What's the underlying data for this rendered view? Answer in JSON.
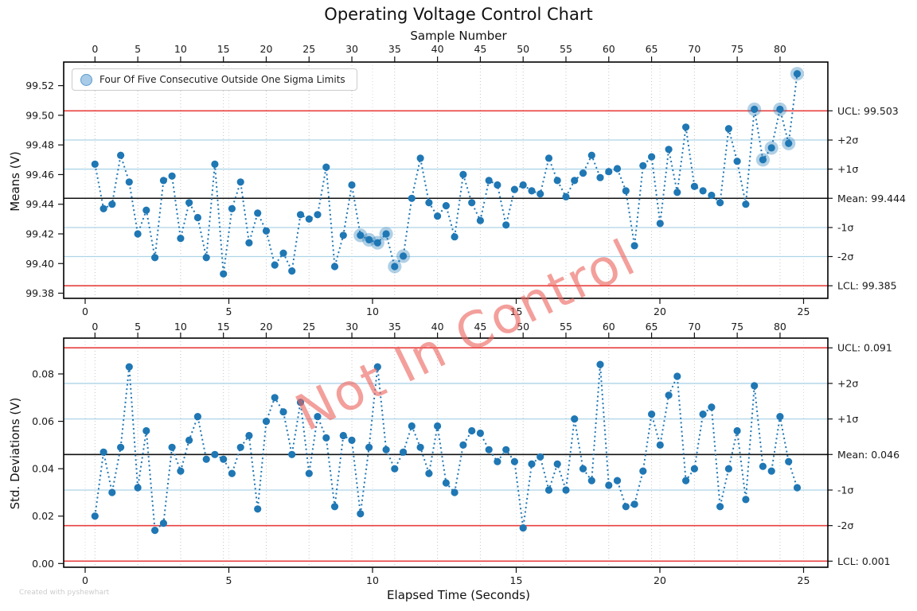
{
  "title": "Operating Voltage Control Chart",
  "top_axis_label": "Sample Number",
  "xlabel": "Elapsed Time (Seconds)",
  "footer": "Created with pyshewhart",
  "legend": {
    "label": "Four Of Five Consecutive Outside One Sigma Limits"
  },
  "watermark": {
    "text": "Not In Control",
    "color": "rgba(235,100,94,0.62)"
  },
  "colors": {
    "point": "#1f77b4",
    "halo": "rgba(31,119,180,0.35)",
    "limit_red": "#e84040",
    "sigma_blue": "#aed4e8",
    "mean_black": "#111111",
    "grid_dotted": "#c4c4c4"
  },
  "chart_data": [
    {
      "type": "line",
      "name": "means-chart",
      "ylabel": "Means (V)",
      "sample_ticks": [
        0,
        5,
        10,
        15,
        20,
        25,
        30,
        35,
        40,
        45,
        50,
        55,
        60,
        65,
        70,
        75,
        80
      ],
      "time_ticks": [
        0,
        5,
        10,
        15,
        20,
        25
      ],
      "seconds_per_sample": 0.3,
      "yticks": [
        "99.52",
        "99.50",
        "99.48",
        "99.46",
        "99.44",
        "99.42",
        "99.40",
        "99.38"
      ],
      "ytick_values": [
        99.52,
        99.5,
        99.48,
        99.46,
        99.44,
        99.42,
        99.4,
        99.38
      ],
      "ylim": [
        99.376,
        99.537
      ],
      "limits": {
        "ucl": 99.503,
        "mean": 99.444,
        "lcl": 99.385,
        "sigma": 0.01967
      },
      "annotations": [
        {
          "label": "UCL: 99.503",
          "value": 99.503,
          "line": "red"
        },
        {
          "label": "+2σ",
          "value": 99.4833,
          "line": "blue"
        },
        {
          "label": "+1σ",
          "value": 99.4637,
          "line": "blue"
        },
        {
          "label": "Mean: 99.444",
          "value": 99.444,
          "line": "black"
        },
        {
          "label": "-1σ",
          "value": 99.4243,
          "line": "blue"
        },
        {
          "label": "-2σ",
          "value": 99.4047,
          "line": "blue"
        },
        {
          "label": "LCL: 99.385",
          "value": 99.385,
          "line": "red"
        }
      ],
      "highlighted_rule": "Four Of Five Consecutive Outside One Sigma Limits",
      "highlighted": [
        31,
        32,
        33,
        34,
        35,
        36,
        77,
        78,
        79,
        80,
        81,
        82
      ],
      "values": [
        99.467,
        99.437,
        99.44,
        99.473,
        99.455,
        99.42,
        99.436,
        99.404,
        99.456,
        99.459,
        99.417,
        99.441,
        99.431,
        99.404,
        99.467,
        99.393,
        99.437,
        99.455,
        99.414,
        99.434,
        99.422,
        99.399,
        99.407,
        99.395,
        99.433,
        99.43,
        99.433,
        99.465,
        99.398,
        99.419,
        99.453,
        99.419,
        99.416,
        99.414,
        99.42,
        99.398,
        99.405,
        99.444,
        99.471,
        99.441,
        99.432,
        99.439,
        99.418,
        99.46,
        99.441,
        99.429,
        99.456,
        99.453,
        99.426,
        99.45,
        99.453,
        99.449,
        99.447,
        99.471,
        99.456,
        99.445,
        99.456,
        99.461,
        99.473,
        99.458,
        99.462,
        99.464,
        99.449,
        99.412,
        99.466,
        99.472,
        99.427,
        99.477,
        99.448,
        99.492,
        99.452,
        99.449,
        99.446,
        99.441,
        99.491,
        99.469,
        99.44,
        99.504,
        99.47,
        99.478,
        99.504,
        99.481,
        99.528
      ]
    },
    {
      "type": "line",
      "name": "std-deviations-chart",
      "ylabel": "Std. Deviations (V)",
      "sample_ticks": [
        0,
        5,
        10,
        15,
        20,
        25,
        30,
        35,
        40,
        45,
        50,
        55,
        60,
        65,
        70,
        75,
        80
      ],
      "time_ticks": [
        0,
        5,
        10,
        15,
        20,
        25
      ],
      "seconds_per_sample": 0.3,
      "yticks": [
        "0.08",
        "0.06",
        "0.04",
        "0.02",
        "0.00"
      ],
      "ytick_values": [
        0.08,
        0.06,
        0.04,
        0.02,
        0.0
      ],
      "ylim": [
        -0.0035,
        0.0975
      ],
      "limits": {
        "ucl": 0.091,
        "mean": 0.046,
        "lcl": 0.001,
        "sigma": 0.015
      },
      "annotations": [
        {
          "label": "UCL: 0.091",
          "value": 0.091,
          "line": "red"
        },
        {
          "label": "+2σ",
          "value": 0.076,
          "line": "blue"
        },
        {
          "label": "+1σ",
          "value": 0.061,
          "line": "blue"
        },
        {
          "label": "Mean: 0.046",
          "value": 0.046,
          "line": "black"
        },
        {
          "label": "-1σ",
          "value": 0.031,
          "line": "blue"
        },
        {
          "label": "-2σ",
          "value": 0.016,
          "line": "red-low"
        },
        {
          "label": "LCL: 0.001",
          "value": 0.001,
          "line": "red"
        }
      ],
      "highlighted": [],
      "values": [
        0.02,
        0.047,
        0.03,
        0.049,
        0.083,
        0.032,
        0.056,
        0.014,
        0.017,
        0.049,
        0.039,
        0.052,
        0.062,
        0.044,
        0.046,
        0.044,
        0.038,
        0.049,
        0.054,
        0.023,
        0.06,
        0.07,
        0.064,
        0.046,
        0.068,
        0.038,
        0.062,
        0.053,
        0.024,
        0.054,
        0.052,
        0.021,
        0.049,
        0.083,
        0.048,
        0.04,
        0.047,
        0.058,
        0.049,
        0.038,
        0.058,
        0.034,
        0.03,
        0.05,
        0.056,
        0.055,
        0.048,
        0.043,
        0.048,
        0.043,
        0.015,
        0.042,
        0.045,
        0.031,
        0.042,
        0.031,
        0.061,
        0.04,
        0.035,
        0.084,
        0.033,
        0.035,
        0.024,
        0.025,
        0.039,
        0.063,
        0.05,
        0.071,
        0.079,
        0.035,
        0.04,
        0.063,
        0.066,
        0.024,
        0.04,
        0.056,
        0.027,
        0.075,
        0.041,
        0.039,
        0.062,
        0.043,
        0.032
      ]
    }
  ]
}
